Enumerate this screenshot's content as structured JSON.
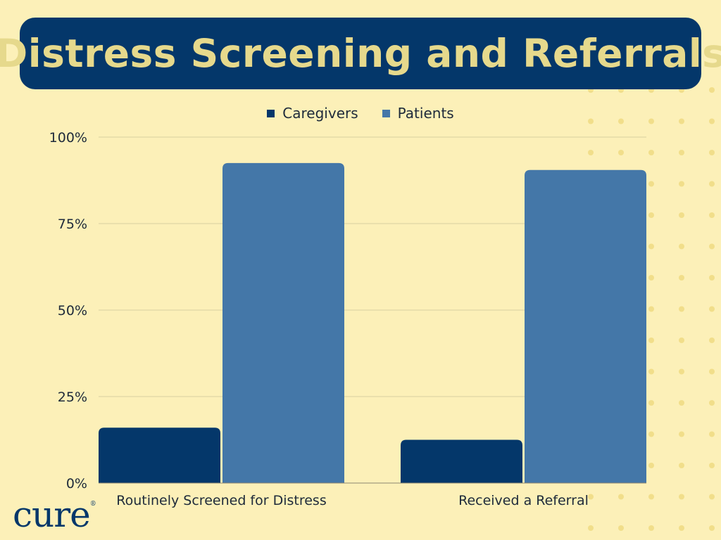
{
  "title": "Distress Screening and Referrals",
  "logo": {
    "text": "cure",
    "mark": "®"
  },
  "colors": {
    "background": "#FCF0B8",
    "title_bg": "#04376A",
    "title_text": "#E6D98C",
    "dots": "#F1DE8A",
    "grid": "#D9CFA0"
  },
  "chart_data": {
    "type": "bar",
    "categories": [
      "Routinely Screened for Distress",
      "Received a Referral"
    ],
    "series": [
      {
        "name": "Caregivers",
        "values": [
          16,
          12.5
        ],
        "color": "#04376A"
      },
      {
        "name": "Patients",
        "values": [
          92.5,
          90.5
        ],
        "color": "#4477A8"
      }
    ],
    "ylim": [
      0,
      100
    ],
    "yticks": [
      0,
      25,
      50,
      75,
      100
    ],
    "ytick_labels": [
      "0%",
      "25%",
      "50%",
      "75%",
      "100%"
    ],
    "grid": true,
    "legend": "top-center"
  }
}
